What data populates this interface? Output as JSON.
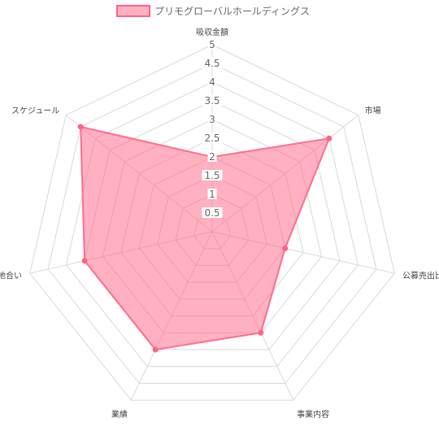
{
  "chart_data": {
    "type": "radar",
    "axes": [
      "吸収金額",
      "市場",
      "公募売出比",
      "事業内容",
      "業績",
      "地合い",
      "スケジュール"
    ],
    "ticks": [
      "0.5",
      "1",
      "1.5",
      "2",
      "2.5",
      "3",
      "3.5",
      "4",
      "4.5",
      "5"
    ],
    "rmin": 0,
    "rmax": 5,
    "grid_step": 0.5,
    "series": [
      {
        "name": "プリモグローバルホールディングス",
        "values": [
          2,
          4,
          2,
          3,
          3.5,
          3.5,
          4.5
        ],
        "color": "#ff6384",
        "fill": "rgba(255, 99, 132, 0.5)"
      }
    ],
    "legend": "top"
  }
}
